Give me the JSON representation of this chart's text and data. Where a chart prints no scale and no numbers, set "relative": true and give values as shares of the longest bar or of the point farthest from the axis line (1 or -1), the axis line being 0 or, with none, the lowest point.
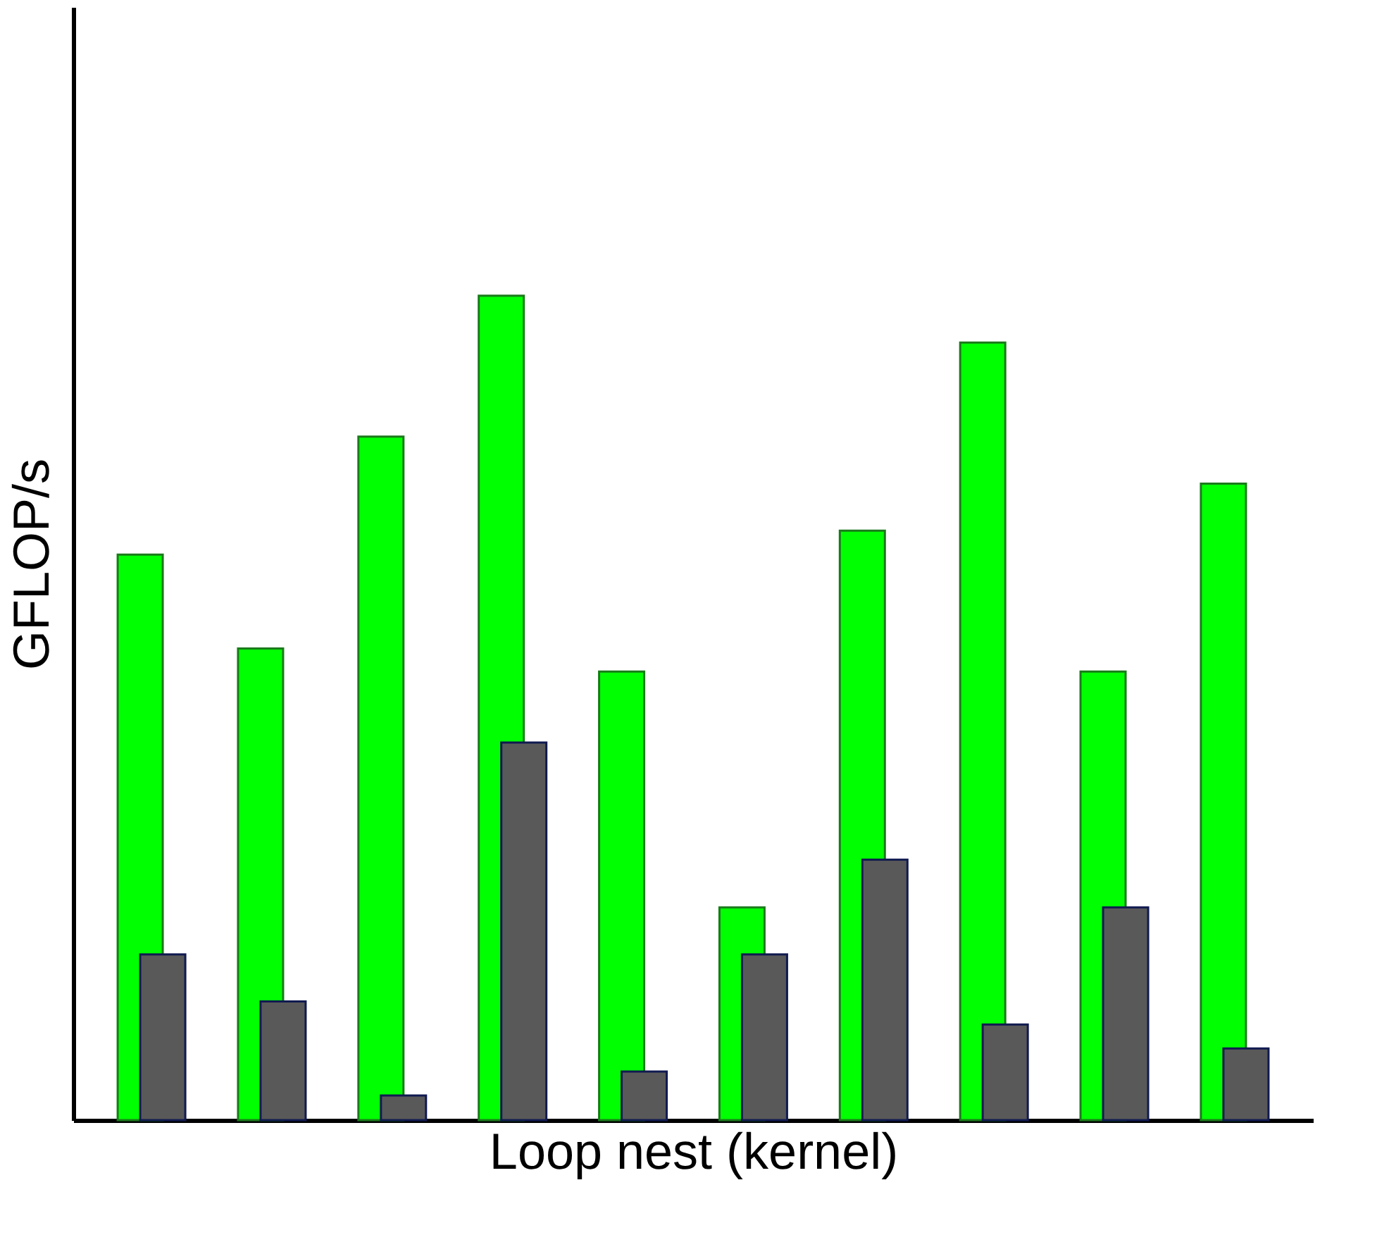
{
  "chart_data": {
    "type": "bar",
    "xlabel": "Loop nest (kernel)",
    "ylabel": "GFLOP/s",
    "relative": true,
    "categories": [
      null,
      null,
      null,
      null,
      null,
      null,
      null,
      null,
      null,
      null
    ],
    "series": [
      {
        "color": "#00ff00",
        "values": [
          0.686,
          0.572,
          0.829,
          1,
          0.544,
          0.258,
          0.715,
          0.943,
          0.544,
          0.772
        ]
      },
      {
        "color": "#595959",
        "values": [
          0.201,
          0.144,
          0.03,
          0.458,
          0.059,
          0.201,
          0.316,
          0.116,
          0.258,
          0.087
        ]
      }
    ]
  }
}
